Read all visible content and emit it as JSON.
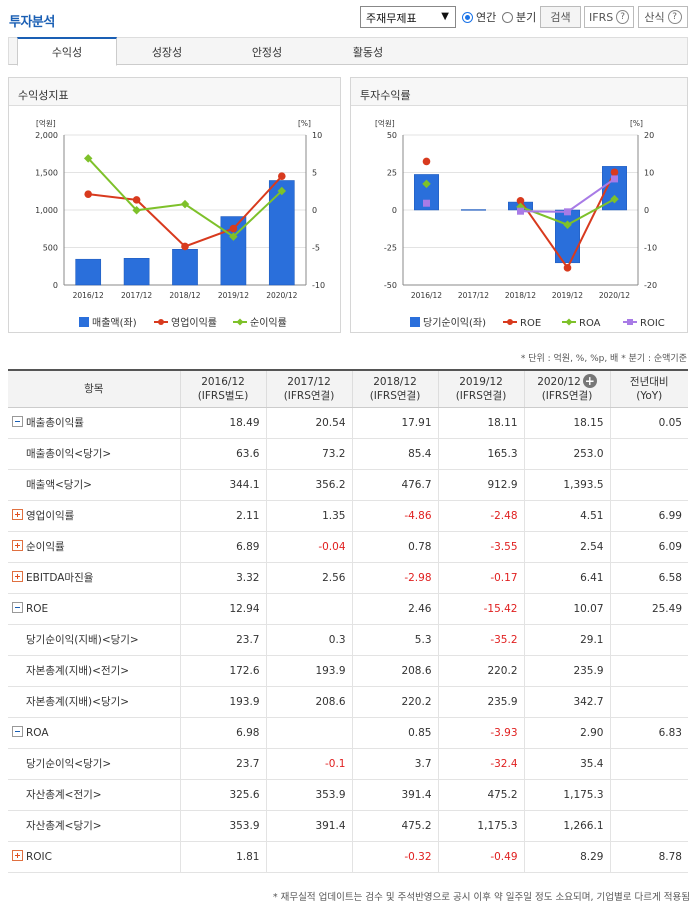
{
  "header": {
    "title": "투자분석",
    "select_value": "주재무제표",
    "radio_annual": "연간",
    "radio_quarter": "분기",
    "search_label": "검색",
    "ifrs_label": "IFRS",
    "calc_label": "산식"
  },
  "tabs": [
    {
      "label": "수익성"
    },
    {
      "label": "성장성"
    },
    {
      "label": "안정성"
    },
    {
      "label": "활동성"
    }
  ],
  "panels": {
    "left_title": "수익성지표",
    "right_title": "투자수익률"
  },
  "colors": {
    "bar": "#2a6fdb",
    "red": "#d83a1e",
    "green": "#7ec12a",
    "purple": "#a87be6",
    "accent": "#1a5fb4"
  },
  "chart_data": [
    {
      "type": "bar+line",
      "categories": [
        "2016/12",
        "2017/12",
        "2018/12",
        "2019/12",
        "2020/12"
      ],
      "y_left_label": "[억원]",
      "y_right_label": "[%]",
      "y_left_ticks": [
        "2,000",
        "1,500",
        "1,000",
        "500",
        "0"
      ],
      "y_right_ticks": [
        "10",
        "5",
        "0",
        "-5",
        "-10"
      ],
      "ylim_left": [
        0,
        2000
      ],
      "ylim_right": [
        -10,
        10
      ],
      "series": [
        {
          "name": "매출액(좌)",
          "type": "bar",
          "axis": "left",
          "values": [
            344.1,
            356.2,
            476.7,
            912.9,
            1393.5
          ]
        },
        {
          "name": "영업이익률",
          "type": "line",
          "axis": "right",
          "values": [
            2.11,
            1.35,
            -4.86,
            -2.48,
            4.51
          ]
        },
        {
          "name": "순이익률",
          "type": "line",
          "axis": "right",
          "values": [
            6.89,
            -0.04,
            0.78,
            -3.55,
            2.54
          ]
        }
      ]
    },
    {
      "type": "bar+line",
      "categories": [
        "2016/12",
        "2017/12",
        "2018/12",
        "2019/12",
        "2020/12"
      ],
      "y_left_label": "[억원]",
      "y_right_label": "[%]",
      "y_left_ticks": [
        "50",
        "25",
        "0",
        "-25",
        "-50"
      ],
      "y_right_ticks": [
        "20",
        "10",
        "0",
        "-10",
        "-20"
      ],
      "ylim_left": [
        -50,
        50
      ],
      "ylim_right": [
        -20,
        20
      ],
      "series": [
        {
          "name": "당기순이익(좌)",
          "type": "bar",
          "axis": "left",
          "values": [
            23.7,
            0.3,
            5.3,
            -35.2,
            29.1
          ]
        },
        {
          "name": "ROE",
          "type": "line",
          "axis": "right",
          "values": [
            12.94,
            null,
            2.46,
            -15.42,
            10.07
          ]
        },
        {
          "name": "ROA",
          "type": "line",
          "axis": "right",
          "values": [
            6.98,
            null,
            0.85,
            -3.93,
            2.9
          ]
        },
        {
          "name": "ROIC",
          "type": "line",
          "axis": "right",
          "values": [
            1.81,
            null,
            -0.32,
            -0.49,
            8.29
          ]
        }
      ]
    }
  ],
  "unit_note": "* 단위 : 억원, %, %p, 배   * 분기 : 순액기준",
  "table": {
    "headers": [
      [
        "항목"
      ],
      [
        "2016/12",
        "(IFRS별도)"
      ],
      [
        "2017/12",
        "(IFRS연결)"
      ],
      [
        "2018/12",
        "(IFRS연결)"
      ],
      [
        "2019/12",
        "(IFRS연결)"
      ],
      [
        "2020/12",
        "(IFRS연결)"
      ],
      [
        "전년대비",
        "(YoY)"
      ]
    ],
    "rows": [
      {
        "label": "매출총이익률",
        "icon": "minus",
        "values": [
          "18.49",
          "20.54",
          "17.91",
          "18.11",
          "18.15",
          "0.05"
        ]
      },
      {
        "label": "매출총이익<당기>",
        "sub": true,
        "values": [
          "63.6",
          "73.2",
          "85.4",
          "165.3",
          "253.0",
          ""
        ]
      },
      {
        "label": "매출액<당기>",
        "sub": true,
        "values": [
          "344.1",
          "356.2",
          "476.7",
          "912.9",
          "1,393.5",
          ""
        ]
      },
      {
        "label": "영업이익률",
        "icon": "plus",
        "values": [
          "2.11",
          "1.35",
          "-4.86",
          "-2.48",
          "4.51",
          "6.99"
        ]
      },
      {
        "label": "순이익률",
        "icon": "plus",
        "values": [
          "6.89",
          "-0.04",
          "0.78",
          "-3.55",
          "2.54",
          "6.09"
        ]
      },
      {
        "label": "EBITDA마진율",
        "icon": "plus",
        "values": [
          "3.32",
          "2.56",
          "-2.98",
          "-0.17",
          "6.41",
          "6.58"
        ]
      },
      {
        "label": "ROE",
        "icon": "minus",
        "values": [
          "12.94",
          "",
          "2.46",
          "-15.42",
          "10.07",
          "25.49"
        ]
      },
      {
        "label": "당기순이익(지배)<당기>",
        "sub": true,
        "values": [
          "23.7",
          "0.3",
          "5.3",
          "-35.2",
          "29.1",
          ""
        ]
      },
      {
        "label": "자본총계(지배)<전기>",
        "sub": true,
        "values": [
          "172.6",
          "193.9",
          "208.6",
          "220.2",
          "235.9",
          ""
        ]
      },
      {
        "label": "자본총계(지배)<당기>",
        "sub": true,
        "values": [
          "193.9",
          "208.6",
          "220.2",
          "235.9",
          "342.7",
          ""
        ]
      },
      {
        "label": "ROA",
        "icon": "minus",
        "values": [
          "6.98",
          "",
          "0.85",
          "-3.93",
          "2.90",
          "6.83"
        ]
      },
      {
        "label": "당기순이익<당기>",
        "sub": true,
        "values": [
          "23.7",
          "-0.1",
          "3.7",
          "-32.4",
          "35.4",
          ""
        ]
      },
      {
        "label": "자산총계<전기>",
        "sub": true,
        "values": [
          "325.6",
          "353.9",
          "391.4",
          "475.2",
          "1,175.3",
          ""
        ]
      },
      {
        "label": "자산총계<당기>",
        "sub": true,
        "values": [
          "353.9",
          "391.4",
          "475.2",
          "1,175.3",
          "1,266.1",
          ""
        ]
      },
      {
        "label": "ROIC",
        "icon": "plus",
        "values": [
          "1.81",
          "",
          "-0.32",
          "-0.49",
          "8.29",
          "8.78"
        ]
      }
    ]
  },
  "footnote": "* 재무실적 업데이트는 검수 및 주석반영으로 공시 이후 약 일주일 정도 소요되며, 기업별로 다르게 적용됨"
}
